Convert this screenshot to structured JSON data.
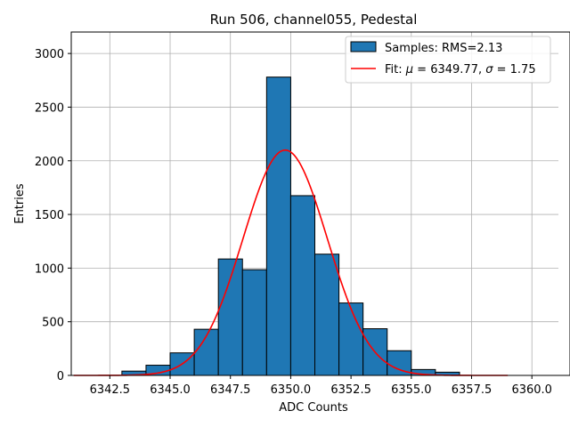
{
  "chart_data": {
    "type": "bar",
    "title": "Run 506, channel055, Pedestal",
    "xlabel": "ADC Counts",
    "ylabel": "Entries",
    "xlim": [
      6340.9,
      6361.1
    ],
    "ylim": [
      0,
      3200
    ],
    "xticks": [
      6342.5,
      6345.0,
      6347.5,
      6350.0,
      6352.5,
      6355.0,
      6357.5,
      6360.0
    ],
    "xtick_labels": [
      "6342.5",
      "6345.0",
      "6347.5",
      "6350.0",
      "6352.5",
      "6355.0",
      "6357.5",
      "6360.0"
    ],
    "yticks": [
      0,
      500,
      1000,
      1500,
      2000,
      2500,
      3000
    ],
    "ytick_labels": [
      "0",
      "500",
      "1000",
      "1500",
      "2000",
      "2500",
      "3000"
    ],
    "grid": true,
    "legend_position": "top-right",
    "histogram": {
      "name": "Samples: RMS=2.13",
      "color": "#1f77b4",
      "edge_color": "#000000",
      "bin_edges": [
        6341,
        6342,
        6343,
        6344,
        6345,
        6346,
        6347,
        6348,
        6349,
        6350,
        6351,
        6352,
        6353,
        6354,
        6355,
        6356,
        6357,
        6358,
        6359,
        6360,
        6361
      ],
      "counts": [
        0,
        0,
        40,
        95,
        210,
        430,
        1085,
        985,
        2780,
        1675,
        1130,
        675,
        435,
        230,
        55,
        30,
        0,
        0,
        0,
        0
      ]
    },
    "fit": {
      "name_text": "Fit: ",
      "mu_symbol": "μ",
      "mu_value": " = 6349.77, ",
      "sigma_symbol": "σ",
      "sigma_value": " = 1.75",
      "color": "#ff0000",
      "mu": 6349.77,
      "sigma": 1.75,
      "amplitude": 2100,
      "x_range": [
        6341,
        6359
      ]
    }
  }
}
